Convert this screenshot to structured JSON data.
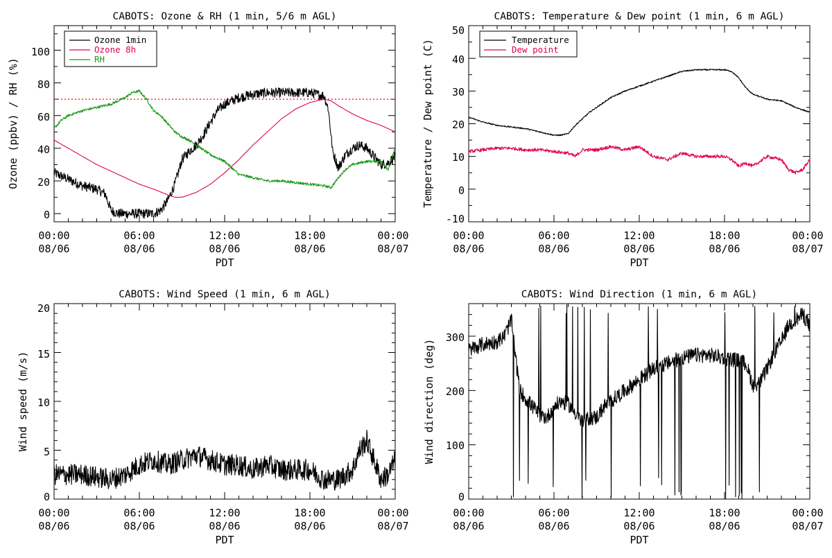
{
  "colors": {
    "black": "#000000",
    "ozone8h": "#e0004e",
    "rh": "#1a9a1a",
    "threshold": "#ff0000",
    "dewpoint": "#e0004e"
  },
  "chart_data": [
    {
      "type": "line",
      "title": "CABOTS: Ozone & RH (1 min, 5/6 m AGL)",
      "xlabel": "PDT",
      "ylabel": "Ozone (ppbv) / RH (%)",
      "xlim_hours": [
        0,
        24
      ],
      "ylim": [
        -5,
        115
      ],
      "x_ticks": [
        {
          "time": "00:00",
          "date": "08/06"
        },
        {
          "time": "06:00",
          "date": "08/06"
        },
        {
          "time": "12:00",
          "date": "08/06"
        },
        {
          "time": "18:00",
          "date": "08/06"
        },
        {
          "time": "00:00",
          "date": "08/07"
        }
      ],
      "y_ticks": [
        "0",
        "20",
        "40",
        "60",
        "80",
        "100"
      ],
      "y_tick_values": [
        0,
        20,
        40,
        60,
        80,
        100
      ],
      "reference_line": {
        "y": 70,
        "style": "dotted"
      },
      "legend": {
        "placement": "top-left"
      },
      "series": [
        {
          "name": "Ozone 1min",
          "color": "#000000",
          "noisy": true,
          "noise": 3,
          "x": [
            0,
            1,
            2,
            3,
            3.6,
            4,
            4.5,
            5,
            6,
            7,
            7.5,
            8,
            8.5,
            9,
            9.5,
            10,
            10.5,
            11,
            11.5,
            12,
            12.5,
            13,
            14,
            15,
            16,
            17,
            18,
            18.5,
            19,
            19.3,
            19.6,
            20,
            20.5,
            21,
            21.5,
            22,
            22.5,
            23,
            23.5,
            24
          ],
          "y": [
            25,
            21,
            17,
            15,
            12,
            2,
            0,
            0,
            0,
            0,
            2,
            8,
            18,
            33,
            38,
            42,
            48,
            56,
            63,
            67,
            69,
            71,
            73,
            74,
            74,
            74,
            74,
            73,
            72,
            64,
            38,
            28,
            36,
            40,
            42,
            40,
            35,
            30,
            31,
            35
          ]
        },
        {
          "name": "Ozone 8h",
          "color": "#e0004e",
          "noisy": false,
          "x": [
            0,
            1,
            2,
            3,
            4,
            5,
            6,
            7,
            8,
            8.5,
            9,
            10,
            11,
            12,
            13,
            14,
            15,
            16,
            17,
            18,
            19,
            19.5,
            20,
            21,
            22,
            23,
            24
          ],
          "y": [
            45,
            40,
            35,
            30,
            26,
            22,
            18,
            15,
            11.5,
            10,
            10,
            13,
            18,
            25,
            33,
            42,
            50,
            58,
            64,
            68,
            70,
            69,
            66,
            61,
            57,
            54,
            50
          ]
        },
        {
          "name": "RH",
          "color": "#1a9a1a",
          "noisy": true,
          "noise": 0.8,
          "x": [
            0,
            0.5,
            1,
            2,
            3,
            4,
            5,
            5.5,
            6,
            6.5,
            7,
            7.5,
            8,
            8.5,
            9,
            9.5,
            10,
            11,
            12,
            12.5,
            13,
            14,
            15,
            16,
            17,
            18,
            19,
            19.5,
            20,
            20.5,
            21,
            22,
            23,
            23.5,
            24
          ],
          "y": [
            52,
            57,
            60,
            63,
            65,
            67,
            71,
            74,
            75,
            70,
            63,
            60,
            55,
            50,
            47,
            45,
            42,
            36,
            32,
            28,
            24,
            22,
            20,
            20,
            19,
            18,
            17,
            16,
            22,
            27,
            30,
            32,
            32,
            27,
            40
          ]
        }
      ]
    },
    {
      "type": "line",
      "title": "CABOTS: Temperature & Dew point (1 min, 6 m AGL)",
      "xlabel": "PDT",
      "ylabel": "Temperature / Dew point (C)",
      "xlim_hours": [
        0,
        24
      ],
      "ylim": [
        -10,
        50
      ],
      "x_ticks": [
        {
          "time": "00:00",
          "date": "08/06"
        },
        {
          "time": "06:00",
          "date": "08/06"
        },
        {
          "time": "12:00",
          "date": "08/06"
        },
        {
          "time": "18:00",
          "date": "08/06"
        },
        {
          "time": "00:00",
          "date": "08/07"
        }
      ],
      "y_ticks": [
        "-10",
        "0",
        "10",
        "20",
        "30",
        "40",
        "50"
      ],
      "y_tick_values": [
        -10,
        0,
        10,
        20,
        30,
        40,
        50
      ],
      "legend": {
        "placement": "top-left"
      },
      "series": [
        {
          "name": "Temperature",
          "color": "#000000",
          "noisy": true,
          "noise": 0.2,
          "x": [
            0,
            1,
            2,
            3,
            4,
            5,
            5.5,
            6,
            6.5,
            7,
            7.5,
            8,
            8.5,
            9,
            10,
            11,
            12,
            13,
            14,
            15,
            16,
            17,
            18,
            18.5,
            19,
            19.5,
            20,
            21,
            22,
            23,
            24
          ],
          "y": [
            22,
            20.5,
            19.5,
            19,
            18.5,
            17.5,
            17,
            16.5,
            16.5,
            17,
            19.5,
            21.5,
            23.5,
            25,
            28,
            30,
            31.5,
            33,
            34.5,
            36,
            36.5,
            36.5,
            36.5,
            36,
            34,
            31,
            29,
            27.5,
            27,
            25,
            23.5
          ]
        },
        {
          "name": "Dew point",
          "color": "#e0004e",
          "noisy": true,
          "noise": 0.5,
          "x": [
            0,
            1,
            2,
            3,
            4,
            5,
            6,
            7,
            7.5,
            8,
            9,
            10,
            11,
            12,
            13,
            14,
            15,
            16,
            17,
            18,
            18.5,
            19,
            19.5,
            20,
            21,
            22,
            22.5,
            23,
            23.5,
            24
          ],
          "y": [
            11.5,
            12,
            12.5,
            12.5,
            12,
            12,
            11.5,
            11,
            10,
            12,
            12,
            13,
            12,
            13,
            10,
            9,
            11,
            10,
            10,
            10,
            9,
            7,
            8,
            7,
            10,
            9,
            6,
            5,
            6,
            9
          ]
        }
      ]
    },
    {
      "type": "line",
      "title": "CABOTS: Wind Speed (1 min, 6 m AGL)",
      "xlabel": "PDT",
      "ylabel": "Wind speed (m/s)",
      "xlim_hours": [
        0,
        24
      ],
      "ylim": [
        0,
        20
      ],
      "x_ticks": [
        {
          "time": "00:00",
          "date": "08/06"
        },
        {
          "time": "06:00",
          "date": "08/06"
        },
        {
          "time": "12:00",
          "date": "08/06"
        },
        {
          "time": "18:00",
          "date": "08/06"
        },
        {
          "time": "00:00",
          "date": "08/07"
        }
      ],
      "y_ticks": [
        "0",
        "5",
        "10",
        "15",
        "20"
      ],
      "y_tick_values": [
        0,
        5,
        10,
        15,
        20
      ],
      "series": [
        {
          "name": "",
          "color": "#000000",
          "noisy": true,
          "noise": 1.1,
          "x": [
            0,
            2,
            4,
            5,
            6,
            7,
            8,
            9,
            10,
            11,
            12,
            13,
            14,
            15,
            16,
            17,
            18,
            19,
            20,
            20.5,
            21,
            21.5,
            22,
            22.5,
            23,
            23.5,
            24
          ],
          "y": [
            2.5,
            2.5,
            2,
            2.5,
            3.5,
            4,
            3.5,
            4,
            4.5,
            4,
            3.5,
            3.5,
            3,
            3.5,
            3,
            3,
            3,
            2,
            2,
            2.5,
            3,
            5,
            6,
            4,
            2,
            2.5,
            4
          ]
        }
      ]
    },
    {
      "type": "line",
      "title": "CABOTS: Wind Direction (1 min, 6 m AGL)",
      "xlabel": "PDT",
      "ylabel": "Wind direction (deg)",
      "xlim_hours": [
        0,
        24
      ],
      "ylim": [
        0,
        360
      ],
      "x_ticks": [
        {
          "time": "00:00",
          "date": "08/06"
        },
        {
          "time": "06:00",
          "date": "08/06"
        },
        {
          "time": "12:00",
          "date": "08/06"
        },
        {
          "time": "18:00",
          "date": "08/06"
        },
        {
          "time": "00:00",
          "date": "08/07"
        }
      ],
      "y_ticks": [
        "0",
        "100",
        "200",
        "300"
      ],
      "y_tick_values": [
        0,
        100,
        200,
        300
      ],
      "series": [
        {
          "name": "",
          "color": "#000000",
          "noisy": true,
          "noise": 14,
          "x": [
            0,
            1,
            2,
            2.5,
            3,
            3.3,
            3.6,
            4,
            4.5,
            5,
            5.5,
            6,
            6.5,
            7,
            7.5,
            8,
            8.5,
            9,
            9.5,
            10,
            10.5,
            11,
            11.5,
            12,
            12.5,
            13,
            14,
            15,
            16,
            17,
            18,
            19,
            19.5,
            20,
            20.5,
            21,
            21.5,
            22,
            22.5,
            23,
            23.5,
            24
          ],
          "y": [
            275,
            285,
            290,
            300,
            330,
            260,
            200,
            185,
            170,
            155,
            150,
            170,
            180,
            175,
            160,
            140,
            150,
            150,
            170,
            180,
            190,
            200,
            210,
            220,
            230,
            240,
            250,
            260,
            265,
            265,
            260,
            255,
            250,
            210,
            215,
            240,
            270,
            290,
            320,
            330,
            340,
            320
          ]
        }
      ]
    }
  ]
}
